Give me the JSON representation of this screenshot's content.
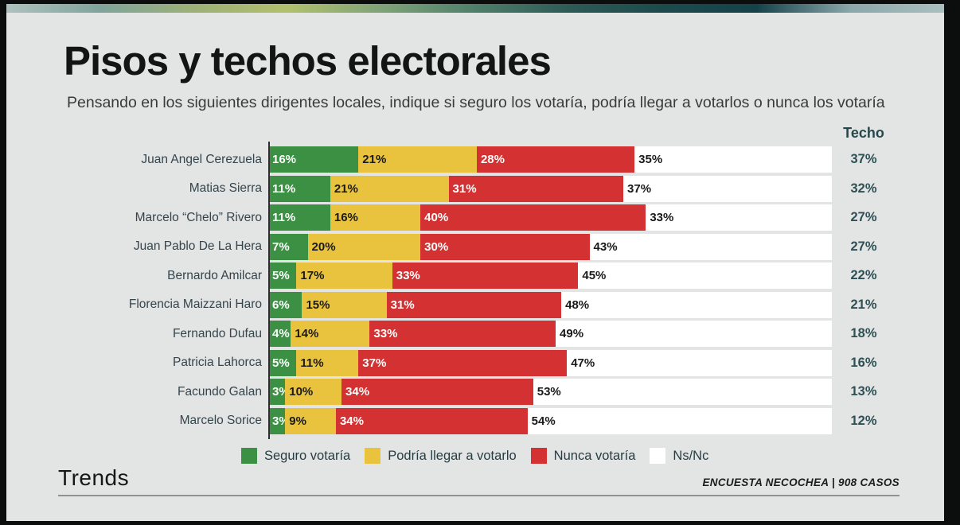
{
  "frame": {
    "outer_background": "#0c0d0d",
    "slide_background": "#e3e4e4",
    "top_gradient_stops": [
      "#aec1be",
      "#7fa49b",
      "#9db077",
      "#b2c06d",
      "#7fa378",
      "#4f7f6b",
      "#2d5a56",
      "#1c4a4c",
      "#15424a",
      "#8aa7ab",
      "#aabfc0"
    ]
  },
  "header": {
    "title": "Pisos y techos electorales",
    "subtitle": "Pensando en los siguientes dirigentes locales, indique si seguro los votaría, podría llegar a votarlos o nunca los votaría"
  },
  "chart_data": {
    "type": "bar",
    "stacked": true,
    "orientation": "horizontal",
    "unit": "%",
    "xlim": [
      0,
      100
    ],
    "grid": false,
    "legend_position": "bottom",
    "categories": [
      "Juan Angel Cerezuela",
      "Matias Sierra",
      "Marcelo “Chelo” Rivero",
      "Juan Pablo De La Hera",
      "Bernardo Amilcar",
      "Florencia Maizzani Haro",
      "Fernando Dufau",
      "Patricia Lahorca",
      "Facundo Galan",
      "Marcelo Sorice"
    ],
    "series": [
      {
        "key": "seguro",
        "name": "Seguro votaría",
        "color": "#3b9043",
        "label_color": "#ffffff",
        "values": [
          16,
          11,
          11,
          7,
          5,
          6,
          4,
          5,
          3,
          3
        ]
      },
      {
        "key": "podria",
        "name": "Podría llegar a votarlo",
        "color": "#e9c33d",
        "label_color": "#1a1a1a",
        "values": [
          21,
          21,
          16,
          20,
          17,
          15,
          14,
          11,
          10,
          9
        ]
      },
      {
        "key": "nunca",
        "name": "Nunca votaría",
        "color": "#d43232",
        "label_color": "#ffffff",
        "values": [
          28,
          31,
          40,
          30,
          33,
          31,
          33,
          37,
          34,
          34
        ]
      },
      {
        "key": "nsnc",
        "name": "Ns/Nc",
        "color": "#ffffff",
        "label_color": "#1a1a1a",
        "values": [
          35,
          37,
          33,
          43,
          45,
          48,
          49,
          47,
          53,
          54
        ]
      }
    ],
    "techo": {
      "label": "Techo",
      "values": [
        37,
        32,
        27,
        27,
        22,
        21,
        18,
        16,
        13,
        12
      ]
    }
  },
  "footer": {
    "brand": "Trends",
    "source": "ENCUESTA NECOCHEA | 908 CASOS"
  }
}
